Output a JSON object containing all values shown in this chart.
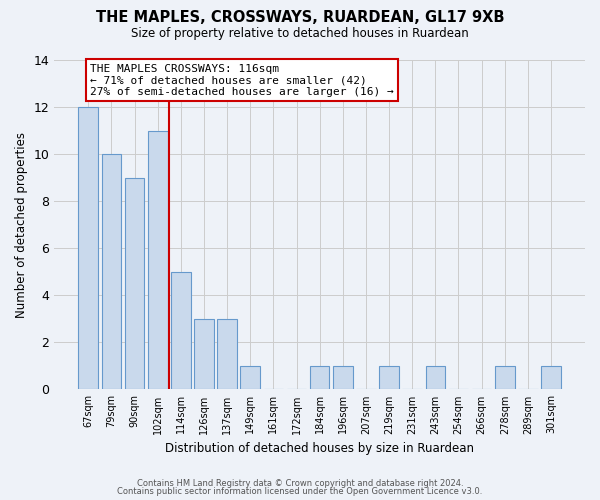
{
  "title": "THE MAPLES, CROSSWAYS, RUARDEAN, GL17 9XB",
  "subtitle": "Size of property relative to detached houses in Ruardean",
  "xlabel": "Distribution of detached houses by size in Ruardean",
  "ylabel": "Number of detached properties",
  "bar_labels": [
    "67sqm",
    "79sqm",
    "90sqm",
    "102sqm",
    "114sqm",
    "126sqm",
    "137sqm",
    "149sqm",
    "161sqm",
    "172sqm",
    "184sqm",
    "196sqm",
    "207sqm",
    "219sqm",
    "231sqm",
    "243sqm",
    "254sqm",
    "266sqm",
    "278sqm",
    "289sqm",
    "301sqm"
  ],
  "bar_values": [
    12,
    10,
    9,
    11,
    5,
    3,
    3,
    1,
    0,
    0,
    1,
    1,
    0,
    1,
    0,
    1,
    0,
    0,
    1,
    0,
    1
  ],
  "bar_color": "#c9d9ec",
  "bar_edge_color": "#6699cc",
  "grid_color": "#cccccc",
  "bg_color": "#eef2f8",
  "redline_index": 3,
  "annotation_title": "THE MAPLES CROSSWAYS: 116sqm",
  "annotation_line1": "← 71% of detached houses are smaller (42)",
  "annotation_line2": "27% of semi-detached houses are larger (16) →",
  "annotation_box_color": "#ffffff",
  "annotation_border_color": "#cc0000",
  "redline_color": "#cc0000",
  "ylim": [
    0,
    14
  ],
  "yticks": [
    0,
    2,
    4,
    6,
    8,
    10,
    12,
    14
  ],
  "footer1": "Contains HM Land Registry data © Crown copyright and database right 2024.",
  "footer2": "Contains public sector information licensed under the Open Government Licence v3.0."
}
